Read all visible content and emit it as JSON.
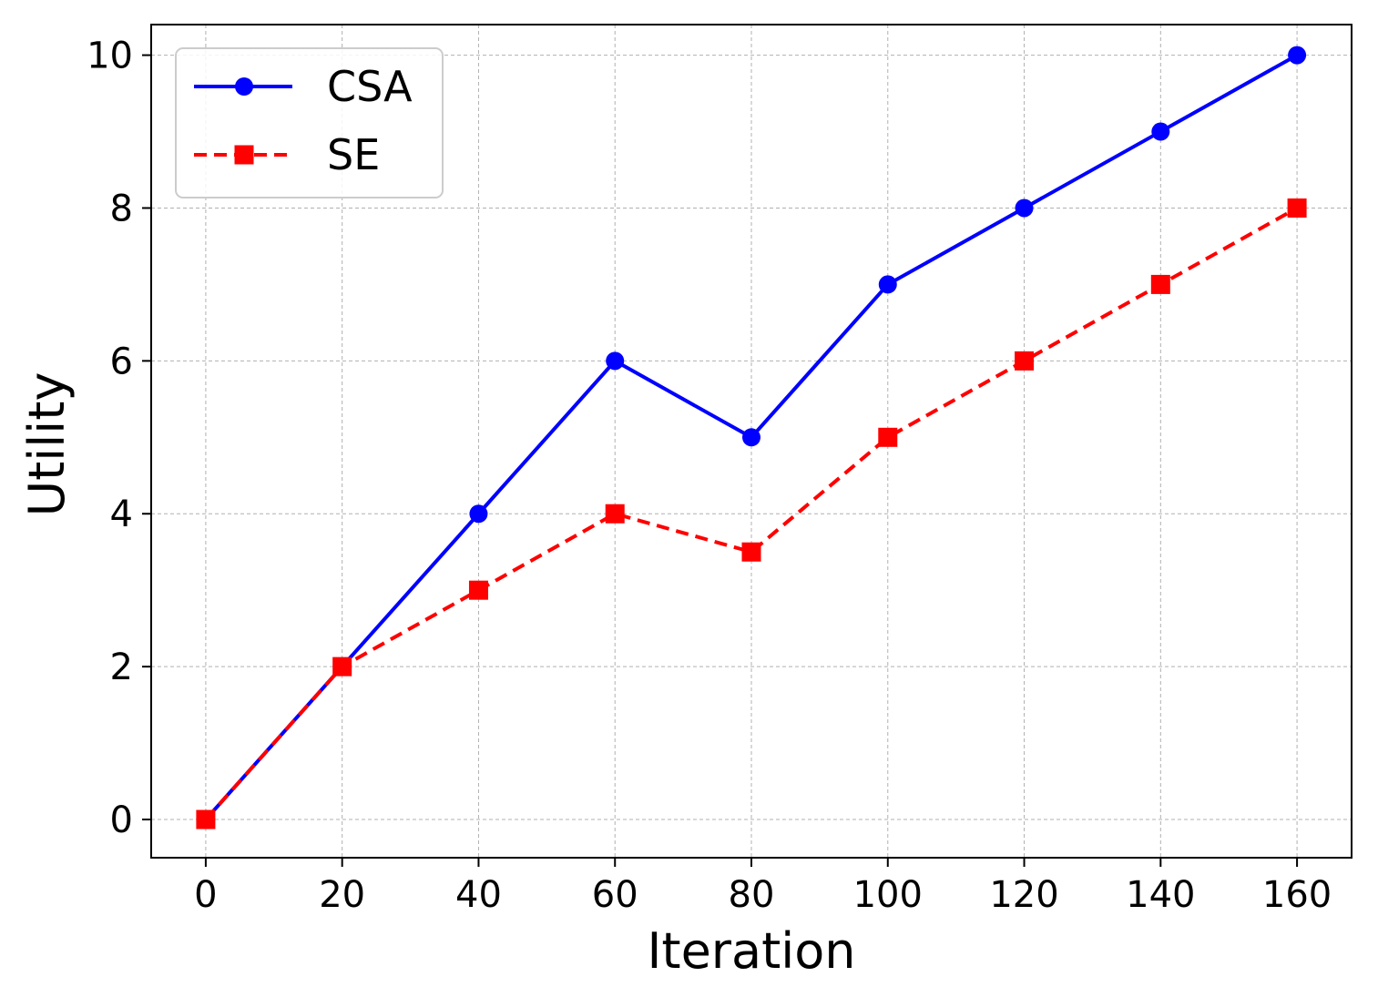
{
  "chart_data": {
    "type": "line",
    "title": "",
    "xlabel": "Iteration",
    "ylabel": "Utility",
    "x": [
      0,
      20,
      40,
      60,
      80,
      100,
      120,
      140,
      160
    ],
    "xlim": [
      -8,
      168
    ],
    "ylim": [
      -0.5,
      10.4
    ],
    "xticks": [
      0,
      20,
      40,
      60,
      80,
      100,
      120,
      140,
      160
    ],
    "yticks": [
      0,
      2,
      4,
      6,
      8,
      10
    ],
    "xtick_labels": [
      "0",
      "20",
      "40",
      "60",
      "80",
      "100",
      "120",
      "140",
      "160"
    ],
    "ytick_labels": [
      "0",
      "2",
      "4",
      "6",
      "8",
      "10"
    ],
    "grid": true,
    "legend_position": "top-left",
    "series": [
      {
        "name": "CSA",
        "values": [
          0,
          2,
          4,
          6,
          5,
          7,
          8,
          9,
          10
        ],
        "color": "#0000ff",
        "line_style": "solid",
        "marker": "circle"
      },
      {
        "name": "SE",
        "values": [
          0,
          2,
          3,
          4,
          3.5,
          5,
          6,
          7,
          8
        ],
        "color": "#ff0000",
        "line_style": "dashed",
        "marker": "square"
      }
    ]
  }
}
